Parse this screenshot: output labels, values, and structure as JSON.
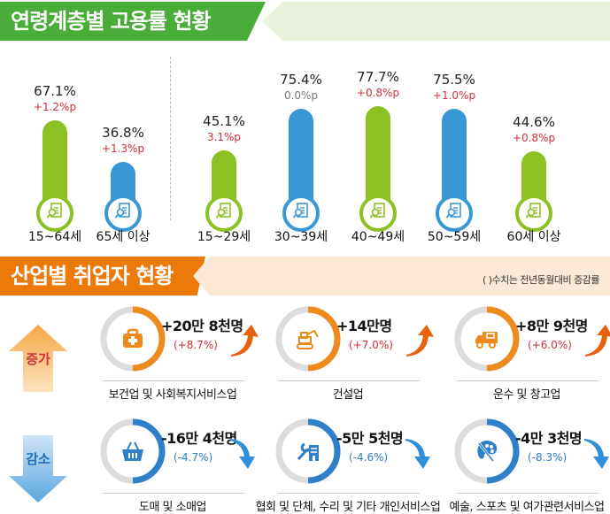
{
  "section1": {
    "title": "연령계층별 고용률 현황"
  },
  "section2": {
    "title": "산업별 취업자 현황",
    "note": "( )수치는 전년동월대비 증감률"
  },
  "colors": {
    "green": "#8cc123",
    "blue": "#3a97d6",
    "red": "#d0303a",
    "gray": "#777777",
    "orange": "#ec8a1d",
    "decrease_blue": "#2f80c8"
  },
  "chart_data": {
    "type": "bar",
    "title": "연령계층별 고용률 현황",
    "unit": "%",
    "categories": [
      "15~64세",
      "65세 이상",
      "15~29세",
      "30~39세",
      "40~49세",
      "50~59세",
      "60세 이상"
    ],
    "values": [
      67.1,
      36.8,
      45.1,
      75.4,
      77.7,
      75.5,
      44.6
    ],
    "value_labels": [
      "67.1%",
      "36.8%",
      "45.1%",
      "75.4%",
      "77.7%",
      "75.5%",
      "44.6%"
    ],
    "changes": [
      "+1.2%p",
      "+1.3%p",
      "3.1%p",
      "0.0%p",
      "+0.8%p",
      "+1.0%p",
      "+0.8%p"
    ],
    "bar_colors": [
      "green",
      "blue",
      "green",
      "blue",
      "green",
      "blue",
      "green"
    ],
    "groups": [
      [
        "15~64세",
        "65세 이상"
      ],
      [
        "15~29세",
        "30~39세",
        "40~49세",
        "50~59세",
        "60세 이상"
      ]
    ],
    "icon": "document-search-icon"
  },
  "industry": {
    "increase_label": "증가",
    "decrease_label": "감소",
    "increase": [
      {
        "name": "보건업 및 사회복지서비스업",
        "value": "+20만 8천명",
        "pct": "(+8.7%)",
        "rate": 8.7,
        "icon": "medical-kit-icon"
      },
      {
        "name": "건설업",
        "value": "+14만명",
        "pct": "(+7.0%)",
        "rate": 7.0,
        "icon": "excavator-icon"
      },
      {
        "name": "운수 및 창고업",
        "value": "+8만 9천명",
        "pct": "(+6.0%)",
        "rate": 6.0,
        "icon": "truck-icon"
      }
    ],
    "decrease": [
      {
        "name": "도매 및 소매업",
        "value": "-16만 4천명",
        "pct": "(-4.7%)",
        "rate": -4.7,
        "icon": "basket-icon"
      },
      {
        "name": "협회 및 단체, 수리 및 기타 개인서비스업",
        "value": "-5만 5천명",
        "pct": "(-4.6%)",
        "rate": -4.6,
        "icon": "wrench-building-icon"
      },
      {
        "name": "예술, 스포츠 및 여가관련서비스업",
        "value": "-4만 3천명",
        "pct": "(-8.3%)",
        "rate": -8.3,
        "icon": "palette-icon"
      }
    ]
  }
}
